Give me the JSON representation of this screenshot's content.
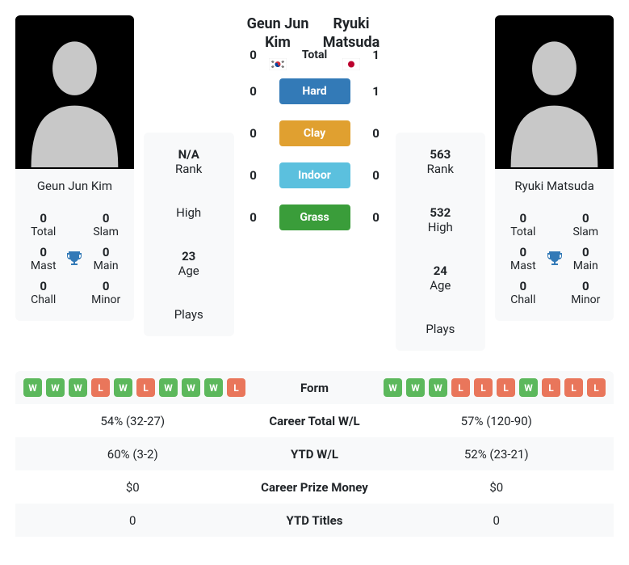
{
  "colors": {
    "win": "#5cb85c",
    "loss": "#e9765b",
    "hard": "#337ab7",
    "clay": "#e0a030",
    "indoor": "#5bc0de",
    "grass": "#3a9d3a",
    "trophy": "#337ab7",
    "card_bg": "#f8f9fa"
  },
  "player1": {
    "name": "Geun Jun Kim",
    "flag_svg": "kr",
    "titles": {
      "total": {
        "val": "0",
        "lbl": "Total"
      },
      "slam": {
        "val": "0",
        "lbl": "Slam"
      },
      "mast": {
        "val": "0",
        "lbl": "Mast"
      },
      "main": {
        "val": "0",
        "lbl": "Main"
      },
      "chall": {
        "val": "0",
        "lbl": "Chall"
      },
      "minor": {
        "val": "0",
        "lbl": "Minor"
      }
    },
    "rank": {
      "val": "N/A",
      "lbl": "Rank"
    },
    "high": {
      "val": "",
      "lbl": "High"
    },
    "age": {
      "val": "23",
      "lbl": "Age"
    },
    "plays": {
      "val": "",
      "lbl": "Plays"
    },
    "form": [
      "W",
      "W",
      "W",
      "L",
      "W",
      "L",
      "W",
      "W",
      "W",
      "L"
    ],
    "career_wl": "54% (32-27)",
    "ytd_wl": "60% (3-2)",
    "prize": "$0",
    "ytd_titles": "0"
  },
  "player2": {
    "name": "Ryuki Matsuda",
    "flag_svg": "jp",
    "titles": {
      "total": {
        "val": "0",
        "lbl": "Total"
      },
      "slam": {
        "val": "0",
        "lbl": "Slam"
      },
      "mast": {
        "val": "0",
        "lbl": "Mast"
      },
      "main": {
        "val": "0",
        "lbl": "Main"
      },
      "chall": {
        "val": "0",
        "lbl": "Chall"
      },
      "minor": {
        "val": "0",
        "lbl": "Minor"
      }
    },
    "rank": {
      "val": "563",
      "lbl": "Rank"
    },
    "high": {
      "val": "532",
      "lbl": "High"
    },
    "age": {
      "val": "24",
      "lbl": "Age"
    },
    "plays": {
      "val": "",
      "lbl": "Plays"
    },
    "form": [
      "W",
      "W",
      "W",
      "L",
      "L",
      "L",
      "W",
      "L",
      "L",
      "L"
    ],
    "career_wl": "57% (120-90)",
    "ytd_wl": "52% (23-21)",
    "prize": "$0",
    "ytd_titles": "0"
  },
  "h2h": {
    "total": {
      "p1": "0",
      "label": "Total",
      "p2": "1"
    },
    "hard": {
      "p1": "0",
      "label": "Hard",
      "p2": "1"
    },
    "clay": {
      "p1": "0",
      "label": "Clay",
      "p2": "0"
    },
    "indoor": {
      "p1": "0",
      "label": "Indoor",
      "p2": "0"
    },
    "grass": {
      "p1": "0",
      "label": "Grass",
      "p2": "0"
    }
  },
  "table_labels": {
    "form": "Form",
    "career_wl": "Career Total W/L",
    "ytd_wl": "YTD W/L",
    "prize": "Career Prize Money",
    "ytd_titles": "YTD Titles"
  }
}
